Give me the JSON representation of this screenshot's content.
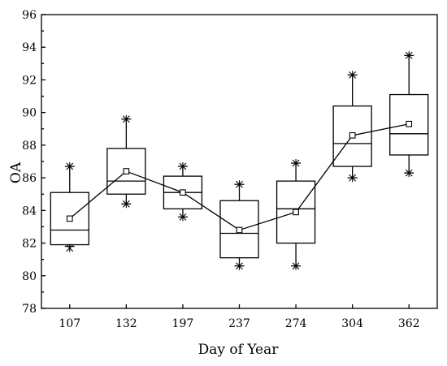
{
  "chart_data": {
    "type": "box",
    "title": "",
    "xlabel": "Day of Year",
    "ylabel": "OA",
    "ylim": [
      78,
      96
    ],
    "y_ticks": [
      78,
      80,
      82,
      84,
      86,
      88,
      90,
      92,
      94,
      96
    ],
    "y_tick_labels": [
      "78",
      "80",
      "82",
      "84",
      "86",
      "88",
      "90",
      "92",
      "94",
      "96"
    ],
    "categories": [
      "107",
      "132",
      "197",
      "237",
      "274",
      "304",
      "362"
    ],
    "series": [
      {
        "boxes": [
          {
            "whisker_low": 81.8,
            "q1": 81.9,
            "median": 82.8,
            "q3": 85.1,
            "whisker_high": 86.7,
            "mean": 83.5,
            "outliers": [
              81.7,
              86.7
            ]
          },
          {
            "whisker_low": 84.4,
            "q1": 85.0,
            "median": 85.8,
            "q3": 87.8,
            "whisker_high": 89.6,
            "mean": 86.4,
            "outliers": [
              84.4,
              89.6
            ]
          },
          {
            "whisker_low": 83.6,
            "q1": 84.1,
            "median": 85.1,
            "q3": 86.1,
            "whisker_high": 86.7,
            "mean": 85.1,
            "outliers": [
              83.6,
              86.7
            ]
          },
          {
            "whisker_low": 80.6,
            "q1": 81.1,
            "median": 82.6,
            "q3": 84.6,
            "whisker_high": 85.6,
            "mean": 82.8,
            "outliers": [
              80.6,
              85.6
            ]
          },
          {
            "whisker_low": 80.6,
            "q1": 82.0,
            "median": 84.1,
            "q3": 85.8,
            "whisker_high": 86.9,
            "mean": 83.9,
            "outliers": [
              80.6,
              86.9
            ]
          },
          {
            "whisker_low": 86.0,
            "q1": 86.7,
            "median": 88.1,
            "q3": 90.4,
            "whisker_high": 92.3,
            "mean": 88.6,
            "outliers": [
              86.0,
              92.3
            ]
          },
          {
            "whisker_low": 86.3,
            "q1": 87.4,
            "median": 88.7,
            "q3": 91.1,
            "whisker_high": 93.5,
            "mean": 89.3,
            "outliers": [
              86.3,
              93.5
            ]
          }
        ]
      }
    ],
    "mean_line": true,
    "grid": false
  }
}
